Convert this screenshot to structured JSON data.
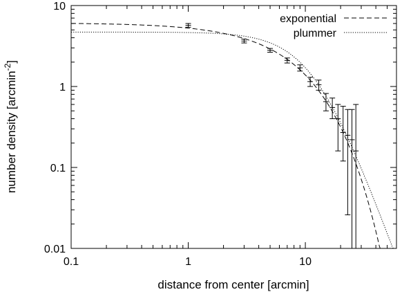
{
  "chart_data": {
    "type": "scatter",
    "title": "",
    "xlabel": "distance from center [arcmin]",
    "ylabel_parts": {
      "main": "number density [arcmin",
      "exponent": "-2",
      "tail": "]"
    },
    "x_scale": "log",
    "y_scale": "log",
    "xlim": [
      0.1,
      60
    ],
    "ylim": [
      0.01,
      10
    ],
    "x_ticks": [
      {
        "value": 0.1,
        "label": "0.1"
      },
      {
        "value": 1,
        "label": "1"
      },
      {
        "value": 10,
        "label": "10"
      }
    ],
    "y_ticks": [
      {
        "value": 0.01,
        "label": "0.01"
      },
      {
        "value": 0.1,
        "label": "0.1"
      },
      {
        "value": 1,
        "label": "1"
      },
      {
        "value": 10,
        "label": "10"
      }
    ],
    "grid": false,
    "legend_position": "top-right",
    "data_points": [
      {
        "x": 1.0,
        "y": 5.7,
        "y_low": 5.4,
        "y_high": 6.0
      },
      {
        "x": 3.0,
        "y": 3.65,
        "y_low": 3.45,
        "y_high": 3.85
      },
      {
        "x": 5.0,
        "y": 2.8,
        "y_low": 2.65,
        "y_high": 2.95
      },
      {
        "x": 7.0,
        "y": 2.1,
        "y_low": 1.95,
        "y_high": 2.25
      },
      {
        "x": 9.0,
        "y": 1.7,
        "y_low": 1.55,
        "y_high": 1.85
      },
      {
        "x": 11.0,
        "y": 1.15,
        "y_low": 1.0,
        "y_high": 1.3
      },
      {
        "x": 13.0,
        "y": 1.05,
        "y_low": 0.9,
        "y_high": 1.2
      },
      {
        "x": 15.0,
        "y": 0.65,
        "y_low": 0.5,
        "y_high": 0.82
      },
      {
        "x": 17.0,
        "y": 0.55,
        "y_low": 0.4,
        "y_high": 0.72
      },
      {
        "x": 19.0,
        "y": 0.4,
        "y_low": 0.16,
        "y_high": 0.6
      },
      {
        "x": 21.0,
        "y": 0.27,
        "y_low": 0.12,
        "y_high": 0.57
      },
      {
        "x": 23.0,
        "y": 0.25,
        "y_low": 0.026,
        "y_high": 0.52
      },
      {
        "x": 25.0,
        "y": 0.22,
        "y_low": 0.01,
        "y_high": 0.52
      },
      {
        "x": 27.0,
        "y": 0.16,
        "y_low": 0.01,
        "y_high": 0.6
      }
    ],
    "series": [
      {
        "name": "exponential",
        "style": "dashed",
        "color": "#000000",
        "model": "exponential",
        "params": {
          "norm": 6.1,
          "scale": 6.75
        }
      },
      {
        "name": "plummer",
        "style": "dotted",
        "color": "#000000",
        "model": "plummer",
        "params": {
          "norm": 4.7,
          "scale": 12.3
        }
      }
    ]
  }
}
